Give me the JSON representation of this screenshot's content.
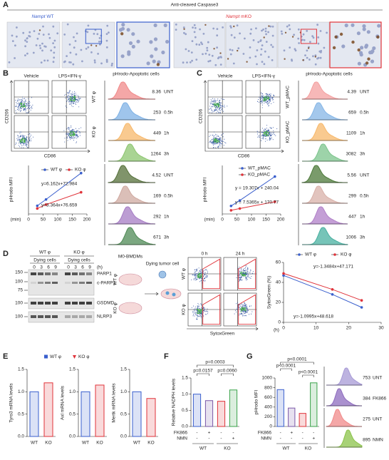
{
  "A": {
    "label": "A",
    "title": "Anti-cleaved Caspase3",
    "groups": [
      {
        "gene": "Nampt",
        "genotype": "WT",
        "color": "#3a5fcd"
      },
      {
        "gene": "Nampt",
        "genotype": "mKO",
        "color": "#e0333a"
      }
    ]
  },
  "B": {
    "label": "B",
    "flow": {
      "conditions": [
        "Vehicle",
        "LPS+IFN-γ"
      ],
      "rows": [
        {
          "name": "WT φ",
          "color": "#3a5fcd"
        },
        {
          "name": "KO φ",
          "color": "#e0333a"
        }
      ],
      "x_label": "CD86",
      "y_label": "CD206"
    },
    "histogram": {
      "title": "pHrodo-Apoptotic cells",
      "groups": [
        {
          "color": "#3a5fcd",
          "values": [
            8.36,
            253,
            449,
            1264
          ],
          "labels": [
            "UNT",
            "0.5h",
            "1h",
            "3h"
          ],
          "fills": [
            "#f08a8a",
            "#7fb2e5",
            "#f7b86b",
            "#8cc56f"
          ]
        },
        {
          "color": "#e0333a",
          "values": [
            4.52,
            169,
            292,
            671
          ],
          "labels": [
            "UNT",
            "0.5h",
            "1h",
            "3h"
          ],
          "fills": [
            "#55703a",
            "#cfa9a0",
            "#a57cc4",
            "#4f8a55"
          ]
        }
      ]
    },
    "line_chart": {
      "type": "line",
      "y_label": "pHrodo MFI",
      "x_label": "(min)",
      "xlim": [
        0,
        200
      ],
      "xticks": [
        0,
        50,
        100,
        150,
        200
      ],
      "ylim": [
        0,
        1500
      ],
      "series": [
        {
          "name": "WT φ",
          "color": "#3a5fcd",
          "x": [
            30,
            60,
            180
          ],
          "values": [
            253,
            449,
            1264
          ],
          "equation": "y=6.162x+72.984"
        },
        {
          "name": "KO φ",
          "color": "#e0333a",
          "x": [
            30,
            60,
            180
          ],
          "values": [
            169,
            292,
            671
          ],
          "equation": "y=3.364x+76.659"
        }
      ]
    }
  },
  "C": {
    "label": "C",
    "flow": {
      "conditions": [
        "Vehicle",
        "LPS+IFN-γ"
      ],
      "rows": [
        {
          "name": "WT_pMAC",
          "color": "#3a5fcd"
        },
        {
          "name": "KO_pMAC",
          "color": "#e0333a"
        }
      ],
      "x_label": "CD86",
      "y_label": "CD206"
    },
    "histogram": {
      "title": "pHrodo-Apoptotic cells",
      "groups": [
        {
          "color": "#3a5fcd",
          "values": [
            4.39,
            659,
            1109,
            3082
          ],
          "labels": [
            "UNT",
            "0.5h",
            "1h",
            "3h"
          ],
          "fills": [
            "#f4a0a0",
            "#86b6e6",
            "#f7b86b",
            "#7cc48c"
          ]
        },
        {
          "color": "#e0333a",
          "values": [
            5.56,
            299,
            447,
            1006
          ],
          "labels": [
            "UNT",
            "0.5h",
            "1h",
            "3h"
          ],
          "fills": [
            "#4d7a3a",
            "#d8b0a8",
            "#b07fc8",
            "#48b0a0"
          ]
        }
      ]
    },
    "line_chart": {
      "type": "line",
      "y_label": "pHrodo MFI",
      "x_label": "(min)",
      "xlim": [
        0,
        200
      ],
      "xticks": [
        0,
        50,
        100,
        150,
        200
      ],
      "ylim": [
        0,
        4000
      ],
      "series": [
        {
          "name": "WT_pMAC",
          "color": "#3a5fcd",
          "x": [
            30,
            60,
            180
          ],
          "values": [
            659,
            1109,
            3082
          ],
          "equation": "y = 19.307x + 240.04"
        },
        {
          "name": "KO_pMAC",
          "color": "#e0333a",
          "x": [
            30,
            60,
            180
          ],
          "values": [
            299,
            447,
            1006
          ],
          "equation": "y = 7.5365x + 170.77"
        }
      ]
    }
  },
  "D": {
    "label": "D",
    "blot": {
      "groups": [
        {
          "name": "WT φ",
          "color": "#3a5fcd"
        },
        {
          "name": "KO φ",
          "color": "#e0333a"
        }
      ],
      "condition": "Dying cells",
      "times": [
        0,
        3,
        6,
        9
      ],
      "time_unit": "(h)",
      "markers": [
        150,
        100,
        75,
        100,
        100
      ],
      "proteins": [
        "PARP1",
        "c-PARP1",
        "GSDMD",
        "NLRP3"
      ]
    },
    "schematic": {
      "macrophage": "M0-BMDMs",
      "tumor": "Dying tumor cell",
      "groups": [
        "WT φ",
        "KO φ"
      ]
    },
    "flow": {
      "times": [
        "0 h",
        "24 h"
      ],
      "rows": [
        "WT φ",
        "KO φ"
      ],
      "x_label": "SytoxGreen"
    },
    "line_chart": {
      "type": "line",
      "y_label": "SytoxGreen (%)",
      "x_label": "(h)",
      "xlim": [
        0,
        30
      ],
      "xticks": [
        0,
        10,
        20,
        30
      ],
      "ylim": [
        0,
        60
      ],
      "yticks": [
        0,
        20,
        40,
        60
      ],
      "series": [
        {
          "name": "WT φ",
          "color": "#3a5fcd",
          "x": [
            0,
            15,
            24
          ],
          "values": [
            47,
            28,
            15
          ],
          "equation": "y=-1.3484x+47.171"
        },
        {
          "name": "KO φ",
          "color": "#e0333a",
          "x": [
            0,
            15,
            24
          ],
          "values": [
            49,
            33,
            22
          ],
          "equation": "y=-1.0995x+48.618"
        }
      ]
    }
  },
  "E": {
    "label": "E",
    "legend": [
      {
        "name": "WT φ",
        "color": "#3a5fcd"
      },
      {
        "name": "KO φ",
        "color": "#e0333a"
      }
    ],
    "charts": [
      {
        "type": "bar",
        "y_label": "Tyro3 mRNA levels",
        "categories": [
          "WT",
          "KO"
        ],
        "values": [
          1.0,
          1.2
        ],
        "ylim": [
          0,
          1.5
        ],
        "yticks": [
          {
            "value": 0,
            "label": "0.0"
          },
          0.5,
          {
            "value": 1,
            "label": "1.0"
          },
          1.5
        ]
      },
      {
        "type": "bar",
        "y_label": "Axl mRNA levels",
        "categories": [
          "WT",
          "KO"
        ],
        "values": [
          1.0,
          1.15
        ],
        "ylim": [
          0,
          1.5
        ],
        "yticks": [
          {
            "value": 0,
            "label": "0.0"
          },
          0.5,
          {
            "value": 1,
            "label": "1.0"
          },
          1.5
        ]
      },
      {
        "type": "bar",
        "y_label": "Mertk mRNA levels",
        "categories": [
          "WT",
          "KO"
        ],
        "values": [
          1.0,
          0.85
        ],
        "ylim": [
          0,
          1.5
        ],
        "yticks": [
          {
            "value": 0,
            "label": "0.0"
          },
          0.5,
          {
            "value": 1,
            "label": "1.0"
          },
          1.5
        ]
      }
    ]
  },
  "F": {
    "label": "F",
    "chart": {
      "type": "bar",
      "y_label": "Relative NADPH levels",
      "values": [
        1.0,
        0.8,
        0.78,
        1.13
      ],
      "colors": [
        "#3a5fcd",
        "#7a58a8",
        "#e0333a",
        "#3aa34a"
      ],
      "ylim": [
        0,
        1.5
      ],
      "yticks": [
        {
          "value": 0,
          "label": "0.0"
        },
        0.5,
        {
          "value": 1,
          "label": "1.0"
        },
        1.5
      ],
      "pvalues": [
        "p=0.0003",
        "p=0.0157",
        "p=0.0060"
      ],
      "treatments": [
        {
          "name": "FK866",
          "signs": [
            "-",
            "+",
            "-",
            "-"
          ]
        },
        {
          "name": "NMN",
          "signs": [
            "-",
            "-",
            "-",
            "+"
          ]
        }
      ],
      "groups": [
        "WT",
        "KO"
      ]
    }
  },
  "G": {
    "label": "G",
    "chart": {
      "type": "bar",
      "y_label": "pHrodo MFI",
      "values": [
        760,
        380,
        270,
        900
      ],
      "colors": [
        "#3a5fcd",
        "#7a58a8",
        "#e0333a",
        "#3aa34a"
      ],
      "ylim": [
        0,
        1000
      ],
      "yticks": [
        0,
        200,
        400,
        600,
        800,
        1000
      ],
      "pvalues": [
        "p<0.0001",
        "p<0.0001",
        "p<0.0001"
      ],
      "treatments": [
        {
          "name": "FK866",
          "signs": [
            "-",
            "+",
            "-",
            "-"
          ]
        },
        {
          "name": "NMN",
          "signs": [
            "-",
            "-",
            "-",
            "+"
          ]
        }
      ],
      "groups": [
        "WT",
        "KO"
      ]
    },
    "histogram": {
      "values": [
        753,
        384,
        275,
        895
      ],
      "labels": [
        "UNT",
        "FK866",
        "UNT",
        "NMN"
      ],
      "fills": [
        "#a79ad6",
        "#8e6cbf",
        "#f08a8a",
        "#8bc34a"
      ]
    }
  }
}
